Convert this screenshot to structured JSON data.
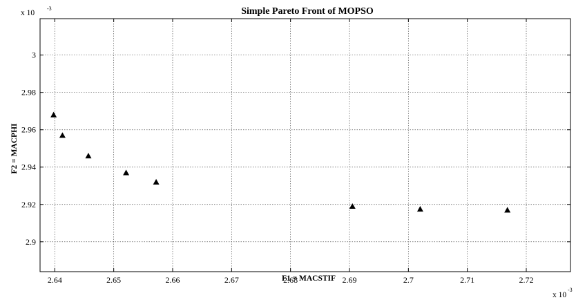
{
  "chart_data": {
    "type": "scatter",
    "title": "Simple Pareto Front of MOPSO",
    "xlabel": "F1 = MACSTIF",
    "ylabel": "F2 = MACPHI",
    "x_multiplier": {
      "base": "x 10",
      "exp": "-3"
    },
    "y_multiplier": {
      "base": "x 10",
      "exp": "-3"
    },
    "xlim": [
      2.6375,
      2.7275
    ],
    "ylim": [
      2.884,
      3.0195
    ],
    "xticks": [
      2.64,
      2.65,
      2.66,
      2.67,
      2.68,
      2.69,
      2.7,
      2.71,
      2.72
    ],
    "xtick_labels": [
      "2.64",
      "2.65",
      "2.66",
      "2.67",
      "2.68",
      "2.69",
      "2.7",
      "2.71",
      "2.72"
    ],
    "yticks": [
      2.9,
      2.92,
      2.94,
      2.96,
      2.98,
      3.0
    ],
    "ytick_labels": [
      "2.9",
      "2.92",
      "2.94",
      "2.96",
      "2.98",
      "3"
    ],
    "grid": true,
    "marker": "triangle",
    "marker_color": "#000000",
    "points": [
      {
        "x": 2.6398,
        "y": 2.968
      },
      {
        "x": 2.6413,
        "y": 2.957
      },
      {
        "x": 2.6457,
        "y": 2.946
      },
      {
        "x": 2.6521,
        "y": 2.937
      },
      {
        "x": 2.6572,
        "y": 2.932
      },
      {
        "x": 2.6905,
        "y": 2.919
      },
      {
        "x": 2.702,
        "y": 2.9175
      },
      {
        "x": 2.7168,
        "y": 2.917
      }
    ]
  }
}
